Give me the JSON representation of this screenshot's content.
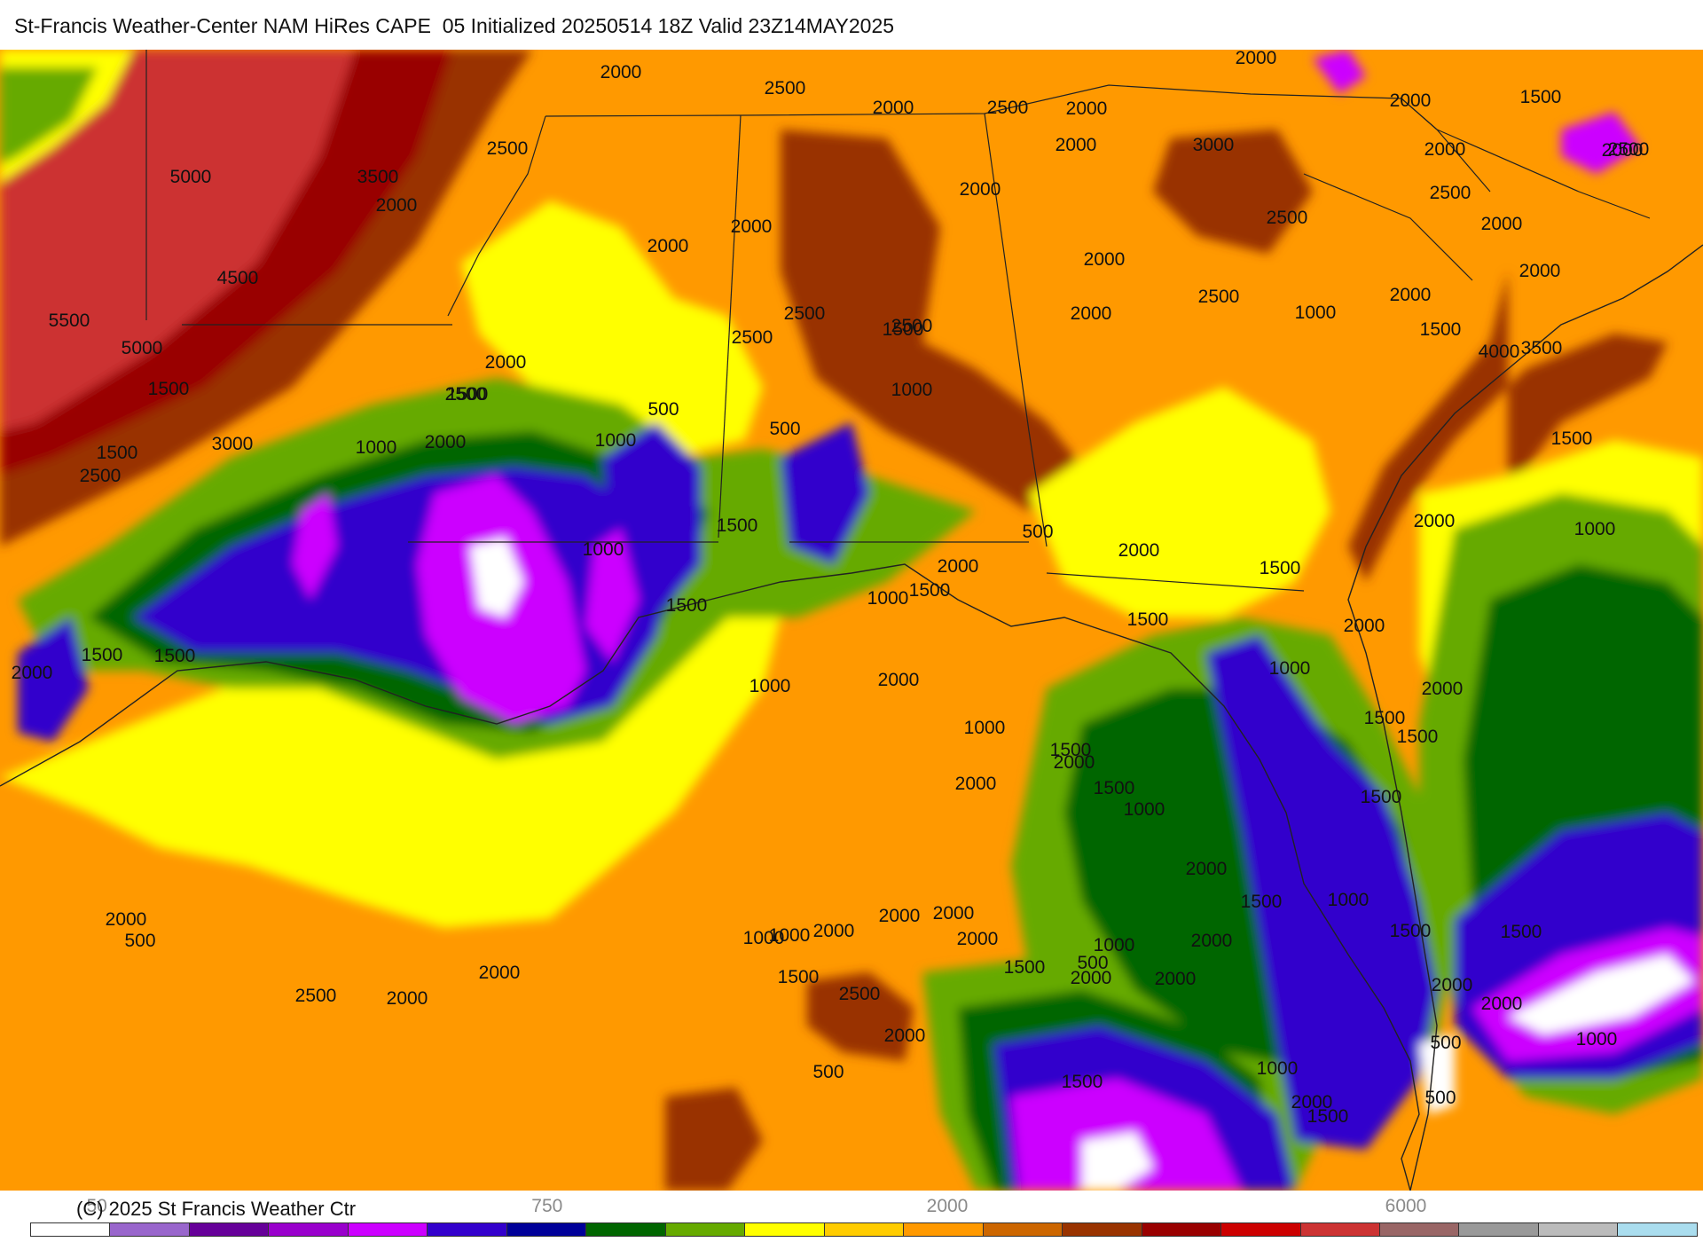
{
  "title": "St-Francis Weather-Center NAM HiRes CAPE  05 Initialized 20250514 18Z Valid 23Z14MAY2025",
  "copyright": "(C) 2025 St Francis Weather Ctr",
  "legend": {
    "colors": [
      "#ffffff",
      "#9966cc",
      "#660099",
      "#9900cc",
      "#cc00ff",
      "#3300cc",
      "#000099",
      "#006600",
      "#66aa00",
      "#ffff00",
      "#ffcc00",
      "#ff9900",
      "#cc6600",
      "#993300",
      "#990000",
      "#cc0000",
      "#cc3333",
      "#996666",
      "#999999",
      "#bbbbbb",
      "#aaddee"
    ],
    "tick_labels": [
      {
        "text": "50",
        "pos": 0.04
      },
      {
        "text": "750",
        "pos": 0.31
      },
      {
        "text": "2000",
        "pos": 0.55
      },
      {
        "text": "6000",
        "pos": 0.825
      }
    ]
  },
  "contour_labels": [
    "2000",
    "2500",
    "2000",
    "2500",
    "2000",
    "2000",
    "2000",
    "1500",
    "2000",
    "5000",
    "3500",
    "2500",
    "2000",
    "3000",
    "2000",
    "2500",
    "2000",
    "2000",
    "2000",
    "2500",
    "2500",
    "2000",
    "4500",
    "2000",
    "2000",
    "5500",
    "5000",
    "2500",
    "2000",
    "2500",
    "2000",
    "2000",
    "1500",
    "2000",
    "2500",
    "2500",
    "4000",
    "1000",
    "1500",
    "2500",
    "1500",
    "3500",
    "500",
    "1000",
    "1500",
    "2000",
    "3000",
    "1000",
    "1500",
    "1000",
    "2000",
    "2500",
    "500",
    "1000",
    "1500",
    "500",
    "2000",
    "1500",
    "2000",
    "1500",
    "2000",
    "1500",
    "1000",
    "1500",
    "1500",
    "1000",
    "1000",
    "1500",
    "2000",
    "2000",
    "1500",
    "1500",
    "1000",
    "2000",
    "1000",
    "1500",
    "2000",
    "1500",
    "2000",
    "1500",
    "1000",
    "1500",
    "2000",
    "1500",
    "1000",
    "2000",
    "2000",
    "1500",
    "1500",
    "2000",
    "2000",
    "1000",
    "2000",
    "500",
    "2500",
    "2000",
    "2000",
    "1000",
    "1000",
    "2000",
    "2000",
    "2000",
    "2000",
    "1500",
    "500",
    "1000",
    "2000",
    "1000",
    "500",
    "500",
    "2000",
    "1500",
    "2500",
    "2000",
    "500",
    "1500",
    "1500"
  ]
}
